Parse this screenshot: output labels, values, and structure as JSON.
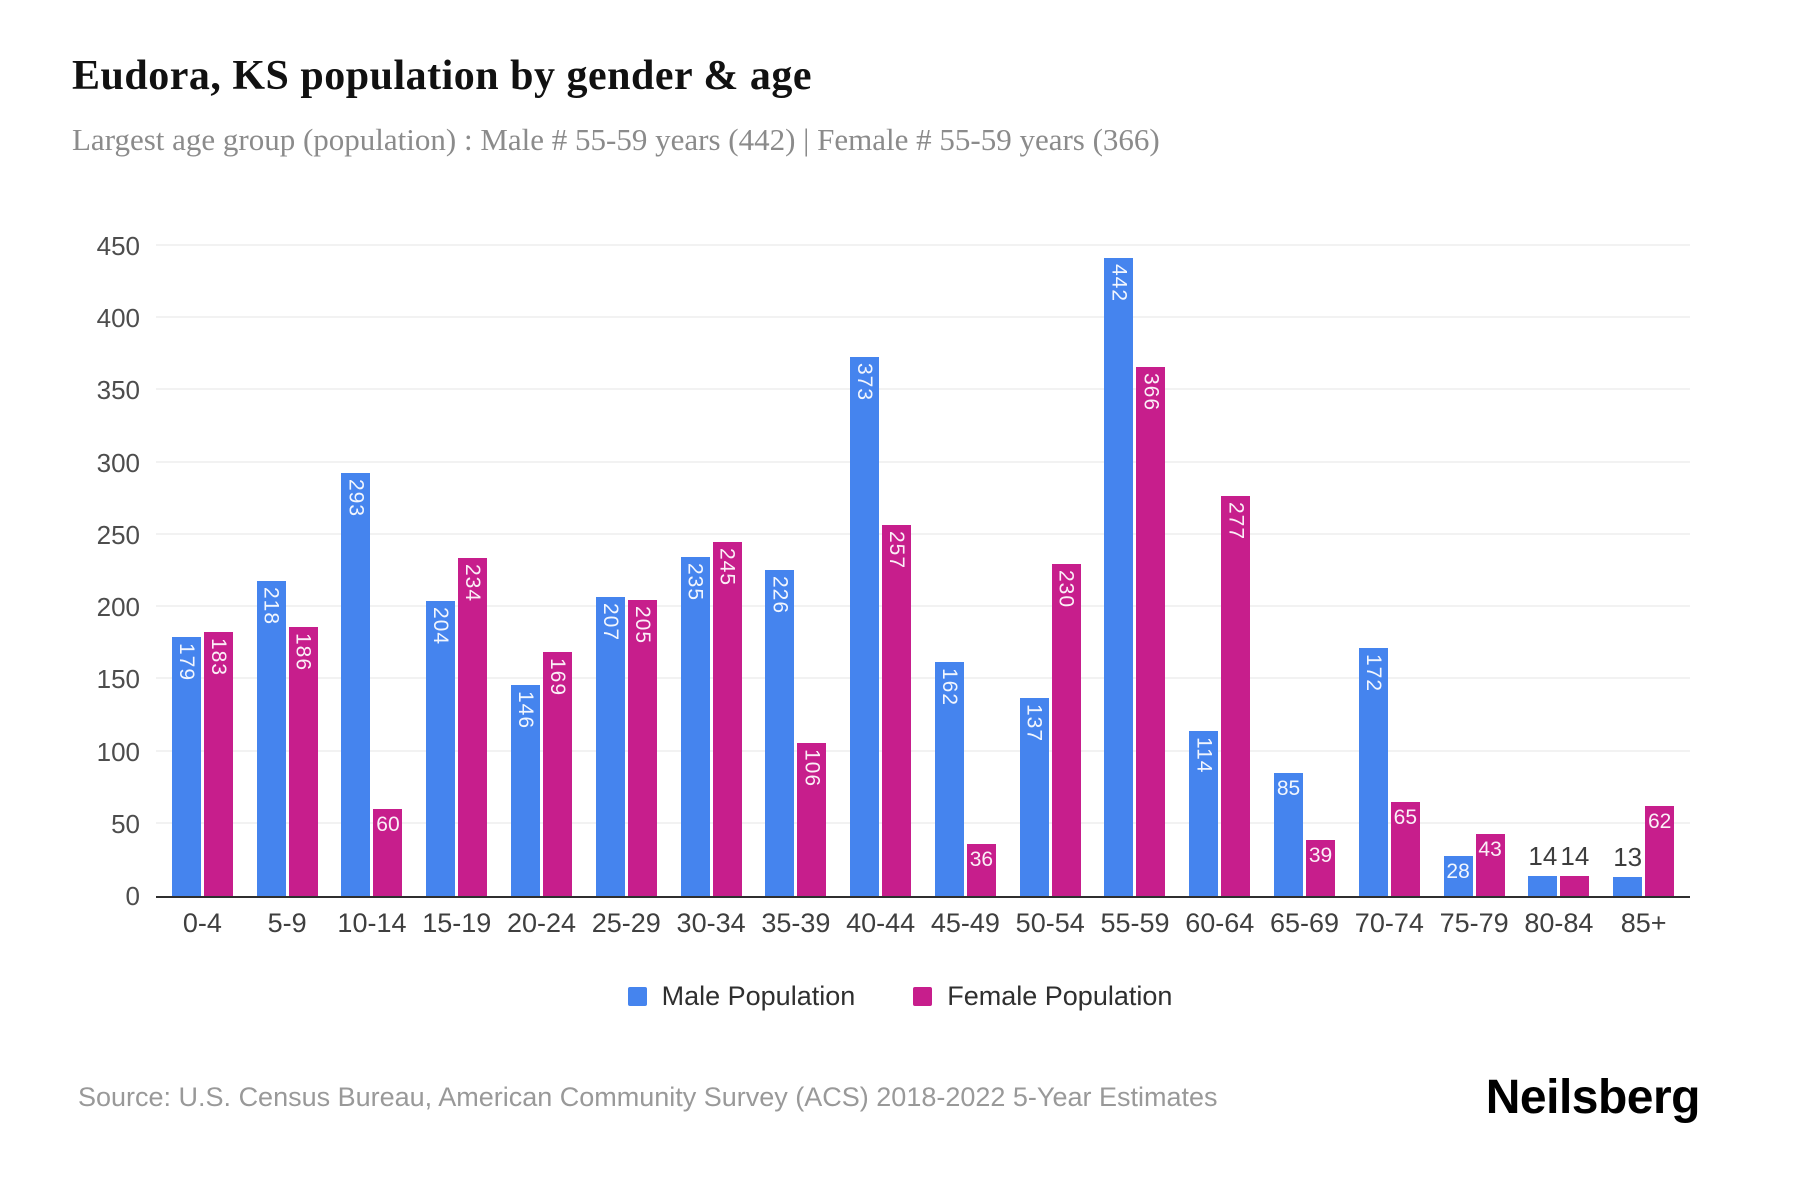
{
  "header": {
    "title": "Eudora, KS population by gender & age",
    "subtitle": "Largest age group (population) : Male # 55-59 years (442) | Female # 55-59 years (366)"
  },
  "chart_data": {
    "type": "bar",
    "title": "Eudora, KS population by gender & age",
    "categories": [
      "0-4",
      "5-9",
      "10-14",
      "15-19",
      "20-24",
      "25-29",
      "30-34",
      "35-39",
      "40-44",
      "45-49",
      "50-54",
      "55-59",
      "60-64",
      "65-69",
      "70-74",
      "75-79",
      "80-84",
      "85+"
    ],
    "series": [
      {
        "key": "male",
        "name": "Male Population",
        "color": "#4584ee",
        "values": [
          179,
          218,
          293,
          204,
          146,
          207,
          235,
          226,
          373,
          162,
          137,
          442,
          114,
          85,
          172,
          28,
          14,
          13
        ]
      },
      {
        "key": "female",
        "name": "Female Population",
        "color": "#c71e8c",
        "values": [
          183,
          186,
          60,
          234,
          169,
          205,
          245,
          106,
          257,
          36,
          230,
          366,
          277,
          39,
          65,
          43,
          14,
          62
        ]
      }
    ],
    "xlabel": "",
    "ylabel": "",
    "ylim": [
      0,
      450
    ],
    "ytick_step": 50,
    "grid": true,
    "legend_position": "bottom",
    "label_colors": {
      "inside": "#ffffff",
      "outside": "#3d3d3d"
    },
    "outside_label_threshold": 20
  },
  "footer": {
    "source": "Source: U.S. Census Bureau, American Community Survey (ACS) 2018-2022 5-Year Estimates",
    "brand": "Neilsberg"
  }
}
